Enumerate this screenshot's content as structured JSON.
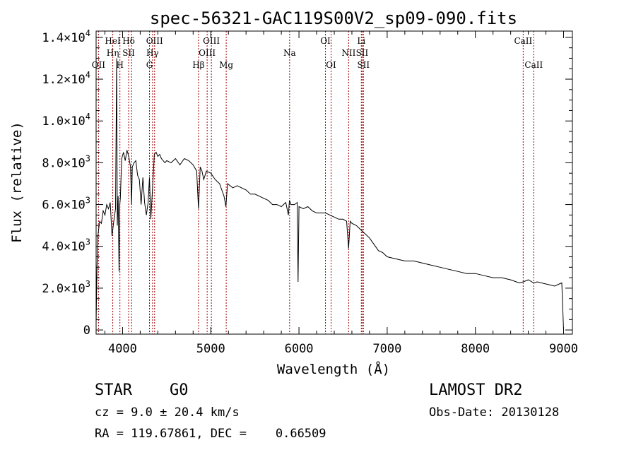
{
  "chart_data": {
    "type": "line",
    "title": "spec-56321-GAC119S00V2_sp09-090.fits",
    "xlabel": "Wavelength (Å)",
    "ylabel": "Flux (relative)",
    "xlim": [
      3700,
      9100
    ],
    "ylim": [
      -200,
      14300
    ],
    "x_ticks": [
      4000,
      5000,
      6000,
      7000,
      8000,
      9000
    ],
    "x_tick_labels": [
      "4000",
      "5000",
      "6000",
      "7000",
      "8000",
      "9000"
    ],
    "y_ticks": [
      {
        "value": 0,
        "mantissa": "0",
        "exponent": ""
      },
      {
        "value": 2000,
        "mantissa": "2.0×10",
        "exponent": "3"
      },
      {
        "value": 4000,
        "mantissa": "4.0×10",
        "exponent": "3"
      },
      {
        "value": 6000,
        "mantissa": "6.0×10",
        "exponent": "3"
      },
      {
        "value": 8000,
        "mantissa": "8.0×10",
        "exponent": "3"
      },
      {
        "value": 10000,
        "mantissa": "1.0×10",
        "exponent": "4"
      },
      {
        "value": 12000,
        "mantissa": "1.2×10",
        "exponent": "4"
      },
      {
        "value": 14000,
        "mantissa": "1.4×10",
        "exponent": "4"
      }
    ],
    "grid": false,
    "line_color": "#000000",
    "marker_color": "#a00000",
    "spectrum": {
      "x": [
        3700,
        3710,
        3720,
        3740,
        3760,
        3780,
        3800,
        3820,
        3840,
        3860,
        3880,
        3900,
        3920,
        3933,
        3940,
        3950,
        3960,
        3968,
        3975,
        3990,
        4010,
        4030,
        4050,
        4070,
        4090,
        4102,
        4110,
        4130,
        4150,
        4170,
        4190,
        4210,
        4230,
        4250,
        4270,
        4290,
        4305,
        4320,
        4340,
        4360,
        4380,
        4400,
        4420,
        4440,
        4460,
        4480,
        4500,
        4550,
        4600,
        4650,
        4700,
        4750,
        4800,
        4840,
        4861,
        4880,
        4900,
        4920,
        4950,
        5000,
        5050,
        5100,
        5150,
        5172,
        5190,
        5250,
        5300,
        5350,
        5400,
        5450,
        5500,
        5550,
        5600,
        5650,
        5700,
        5750,
        5800,
        5850,
        5880,
        5892,
        5910,
        5950,
        5980,
        5990,
        6000,
        6050,
        6100,
        6150,
        6200,
        6250,
        6300,
        6350,
        6400,
        6450,
        6500,
        6540,
        6563,
        6580,
        6600,
        6650,
        6700,
        6750,
        6800,
        6850,
        6900,
        6950,
        7000,
        7100,
        7200,
        7300,
        7400,
        7500,
        7600,
        7700,
        7800,
        7900,
        8000,
        8100,
        8200,
        8300,
        8400,
        8498,
        8542,
        8600,
        8662,
        8700,
        8800,
        8900,
        8950,
        8980,
        9000
      ],
      "y": [
        300,
        2900,
        4500,
        5200,
        5100,
        5700,
        5500,
        6000,
        5800,
        6100,
        4500,
        5200,
        5800,
        13000,
        5000,
        6400,
        2800,
        6000,
        6300,
        8200,
        8500,
        8100,
        8600,
        8300,
        7800,
        6000,
        7800,
        8000,
        8100,
        7400,
        7200,
        6000,
        7300,
        6100,
        5500,
        6100,
        7300,
        5300,
        6800,
        8400,
        8500,
        8300,
        8400,
        8200,
        8100,
        8000,
        8100,
        8000,
        8200,
        7900,
        8200,
        8100,
        7900,
        7600,
        5800,
        7800,
        7600,
        7200,
        7600,
        7500,
        7200,
        7000,
        6400,
        5900,
        7000,
        6800,
        6900,
        6800,
        6700,
        6500,
        6500,
        6400,
        6300,
        6200,
        6000,
        6000,
        5900,
        6100,
        5500,
        6200,
        6000,
        6000,
        6100,
        2300,
        5900,
        5800,
        5900,
        5700,
        5600,
        5600,
        5600,
        5500,
        5400,
        5300,
        5300,
        5200,
        3900,
        5200,
        5100,
        5000,
        4800,
        4600,
        4400,
        4100,
        3800,
        3700,
        3500,
        3400,
        3300,
        3300,
        3200,
        3100,
        3000,
        2900,
        2800,
        2700,
        2700,
        2600,
        2500,
        2500,
        2400,
        2250,
        2300,
        2400,
        2250,
        2300,
        2200,
        2100,
        2200,
        2250,
        0
      ]
    },
    "line_markers": [
      {
        "wavelength": 3727,
        "label": "OII",
        "row": 3
      },
      {
        "wavelength": 3889,
        "label": "HeI",
        "row": 1
      },
      {
        "wavelength": 3889,
        "label": "Hη",
        "row": 2
      },
      {
        "wavelength": 3970,
        "label": "H",
        "row": 3
      },
      {
        "wavelength": 4069,
        "label": "Hδ",
        "row": 1
      },
      {
        "wavelength": 4069,
        "label": "SII",
        "row": 2
      },
      {
        "wavelength": 4102,
        "label": "",
        "row": 0
      },
      {
        "wavelength": 4305,
        "label": "G",
        "row": 3
      },
      {
        "wavelength": 4340,
        "label": "Hγ",
        "row": 2
      },
      {
        "wavelength": 4363,
        "label": "OIII",
        "row": 1
      },
      {
        "wavelength": 4861,
        "label": "Hβ",
        "row": 3
      },
      {
        "wavelength": 4959,
        "label": "OIII",
        "row": 2
      },
      {
        "wavelength": 5007,
        "label": "OIII",
        "row": 1
      },
      {
        "wavelength": 5175,
        "label": "Mg",
        "row": 3
      },
      {
        "wavelength": 5894,
        "label": "Na",
        "row": 2
      },
      {
        "wavelength": 6300,
        "label": "OI",
        "row": 1
      },
      {
        "wavelength": 6364,
        "label": "OI",
        "row": 3
      },
      {
        "wavelength": 6563,
        "label": "NII",
        "row": 2
      },
      {
        "wavelength": 6707,
        "label": "Li",
        "row": 1
      },
      {
        "wavelength": 6716,
        "label": "SII",
        "row": 2
      },
      {
        "wavelength": 6731,
        "label": "SII",
        "row": 3
      },
      {
        "wavelength": 8542,
        "label": "CaII",
        "row": 1
      },
      {
        "wavelength": 8662,
        "label": "CaII",
        "row": 3
      }
    ]
  },
  "info": {
    "object_type": "STAR",
    "subclass": "G0",
    "redshift_text": "cz = 9.0 ± 20.4 km/s",
    "coords_text": "RA = 119.67861, DEC =    0.66509",
    "survey": "LAMOST DR2",
    "obs_date": "Obs-Date: 20130128"
  }
}
